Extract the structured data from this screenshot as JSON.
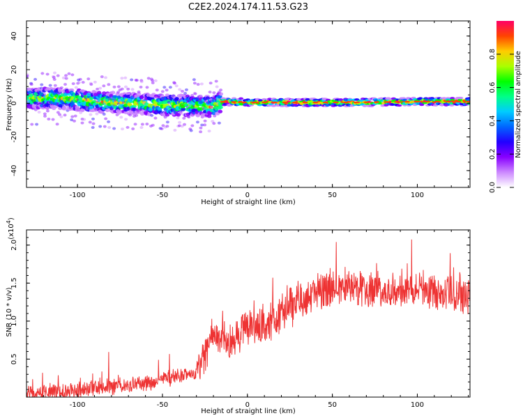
{
  "title": "C2E2.2024.174.11.53.G23",
  "colors": {
    "snr_line": "#ee3333",
    "axis": "#000000",
    "colormap": [
      "#ffffff",
      "#cc88ff",
      "#8800ff",
      "#2200ff",
      "#0066ff",
      "#00ccff",
      "#00ff88",
      "#00ff00",
      "#aaff00",
      "#ffcc00",
      "#ff4400",
      "#ff0066"
    ]
  },
  "chart_data": [
    {
      "type": "heatmap",
      "name": "spectrogram",
      "xlabel": "Height of straight line (km)",
      "ylabel": "Frequency (Hz)",
      "xlim": [
        -130,
        131
      ],
      "ylim": [
        -50,
        49
      ],
      "xticks": [
        -100,
        -50,
        0,
        50,
        100
      ],
      "yticks": [
        -40,
        -20,
        0,
        20,
        40
      ],
      "ridge": [
        {
          "x": -130,
          "y": 3
        },
        {
          "x": -110,
          "y": 3
        },
        {
          "x": -90,
          "y": 1
        },
        {
          "x": -70,
          "y": 0
        },
        {
          "x": -50,
          "y": -1
        },
        {
          "x": -30,
          "y": -1.5
        },
        {
          "x": -20,
          "y": -2
        },
        {
          "x": -15,
          "y": 1
        },
        {
          "x": 0,
          "y": 0.5
        },
        {
          "x": 30,
          "y": 0.5
        },
        {
          "x": 60,
          "y": 0.5
        },
        {
          "x": 100,
          "y": 1
        },
        {
          "x": 131,
          "y": 1
        }
      ],
      "colorbar": {
        "label": "Normalized spectral amplitude",
        "range": [
          0,
          1
        ],
        "ticks": [
          0.0,
          0.2,
          0.4,
          0.6,
          0.8
        ]
      }
    },
    {
      "type": "line",
      "name": "snr",
      "xlabel": "Height of straight line (km)",
      "ylabel": "SNR (10 * v/v)",
      "scale_label": "(x10",
      "scale_exp": "4",
      "scale_suffix": ")",
      "xlim": [
        -130,
        131
      ],
      "ylim": [
        0.0,
        2.2
      ],
      "xticks": [
        -100,
        -50,
        0,
        50,
        100
      ],
      "yticks": [
        0.5,
        1.0,
        1.5,
        2.0
      ],
      "envelope": [
        {
          "x": -130,
          "y": 0.05
        },
        {
          "x": -110,
          "y": 0.08
        },
        {
          "x": -90,
          "y": 0.12
        },
        {
          "x": -70,
          "y": 0.16
        },
        {
          "x": -55,
          "y": 0.2
        },
        {
          "x": -40,
          "y": 0.28
        },
        {
          "x": -30,
          "y": 0.3
        },
        {
          "x": -25,
          "y": 0.55
        },
        {
          "x": -20,
          "y": 0.8
        },
        {
          "x": -10,
          "y": 0.75
        },
        {
          "x": 0,
          "y": 0.95
        },
        {
          "x": 10,
          "y": 0.9
        },
        {
          "x": 20,
          "y": 1.1
        },
        {
          "x": 30,
          "y": 1.3
        },
        {
          "x": 40,
          "y": 1.4
        },
        {
          "x": 60,
          "y": 1.45
        },
        {
          "x": 80,
          "y": 1.4
        },
        {
          "x": 100,
          "y": 1.45
        },
        {
          "x": 120,
          "y": 1.35
        },
        {
          "x": 131,
          "y": 1.35
        }
      ]
    }
  ]
}
